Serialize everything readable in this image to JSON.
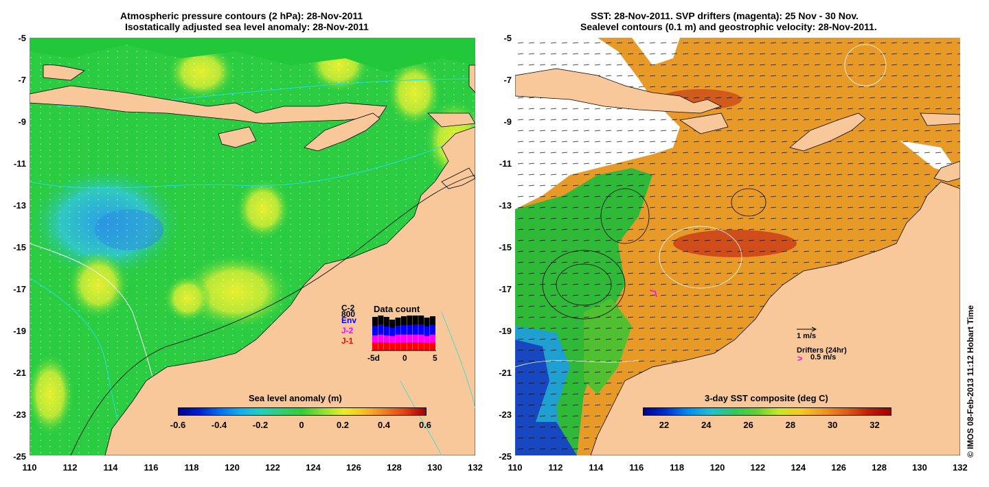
{
  "left_panel": {
    "title_line1": "Atmospheric pressure contours (2 hPa): 28-Nov-2011",
    "title_line2": "Isostatically adjusted sea level anomaly: 28-Nov-2011",
    "colorbar_label": "Sea level anomaly (m)",
    "colorbar_ticks": [
      "-0.6",
      "-0.4",
      "-0.2",
      "0",
      "0.2",
      "0.4",
      "0.6"
    ],
    "data_count": {
      "title": "Data count",
      "legend": [
        {
          "label": "C-2",
          "color": "#000000"
        },
        {
          "label": "800",
          "color": "#000000"
        },
        {
          "label": "Env",
          "color": "#0000ff"
        },
        {
          "label": "J-2",
          "color": "#ff00ff"
        },
        {
          "label": "J-1",
          "color": "#ff0000"
        }
      ],
      "x_ticks": [
        "-5d",
        "0",
        "5"
      ]
    }
  },
  "right_panel": {
    "title_line1": "SST: 28-Nov-2011. SVP drifters (magenta): 25 Nov - 30 Nov.",
    "title_line2": "Sealevel contours (0.1 m) and geostrophic velocity: 28-Nov-2011.",
    "colorbar_label": "3-day SST composite (deg C)",
    "colorbar_ticks": [
      "22",
      "24",
      "26",
      "28",
      "30",
      "32"
    ],
    "velocity_scale": "1 m/s",
    "drifters_label": "Drifters (24hr)",
    "drifters_scale": "0.5 m/s",
    "drifters_symbol": ">"
  },
  "axes": {
    "y_ticks": [
      "-5",
      "-7",
      "-9",
      "-11",
      "-13",
      "-15",
      "-17",
      "-19",
      "-21",
      "-23",
      "-25"
    ],
    "x_ticks": [
      "110",
      "112",
      "114",
      "116",
      "118",
      "120",
      "122",
      "124",
      "126",
      "128",
      "130",
      "132"
    ]
  },
  "credit": "© IMOS 08-Feb-2013 11:12 Hobart Time",
  "colors": {
    "land": "#f8c89a",
    "ocean_green": "#22cc22",
    "sst_orange": "#f0a020"
  }
}
